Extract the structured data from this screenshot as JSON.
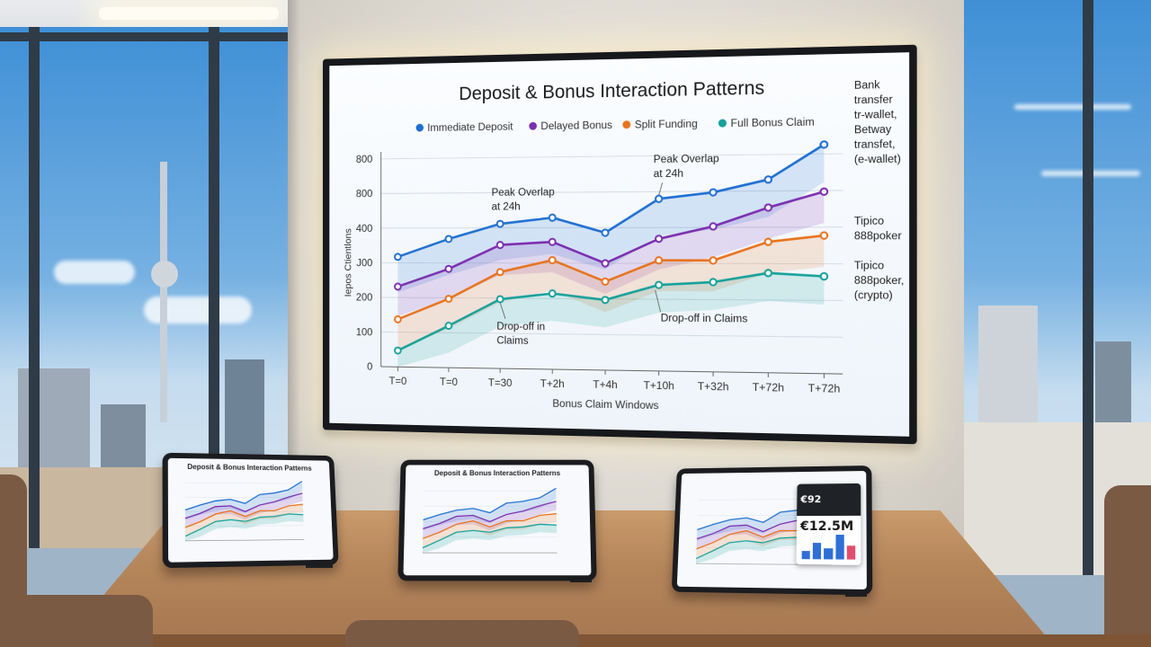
{
  "chart_data": {
    "type": "line",
    "title": "Deposit & Bonus Interaction Patterns",
    "xlabel": "Bonus Claim Windows",
    "ylabel": "Iepos Ctientlons",
    "categories": [
      "T=0",
      "T=0",
      "T=30",
      "T+2h",
      "T+4h",
      "T+10h",
      "T+32h",
      "T+72h",
      "T+72h"
    ],
    "y_ticks": [
      "0",
      "100",
      "200",
      "J00",
      "400",
      "800",
      "800"
    ],
    "ylim": [
      0,
      700
    ],
    "grid": true,
    "legend_position": "top",
    "series": [
      {
        "name": "Immediate Deposit",
        "color": "#1f6fd1",
        "values": [
          370,
          430,
          480,
          500,
          450,
          560,
          580,
          620,
          730
        ],
        "band": 120
      },
      {
        "name": "Delayed Bonus",
        "color": "#7b2fb0",
        "values": [
          270,
          330,
          410,
          420,
          350,
          430,
          470,
          530,
          580
        ],
        "band": 100
      },
      {
        "name": "Split Funding",
        "color": "#e8731d",
        "values": [
          160,
          230,
          320,
          360,
          290,
          360,
          360,
          420,
          440
        ],
        "band": 100
      },
      {
        "name": "Full Bonus Claim",
        "color": "#17a19a",
        "values": [
          55,
          140,
          230,
          250,
          230,
          280,
          290,
          320,
          310
        ],
        "band": 90
      }
    ],
    "annotations": [
      {
        "text": [
          "Peak Overlap",
          "at 24h"
        ],
        "at": 2
      },
      {
        "text": [
          "Peak Overlap",
          "at 24h"
        ],
        "at": 5
      },
      {
        "text": [
          "Drop-off in",
          "Claims"
        ],
        "at": 2
      },
      {
        "text": [
          "Drop-off in Claims"
        ],
        "at": 5
      }
    ],
    "end_labels": [
      {
        "series": 0,
        "lines": [
          "Bank",
          "transfer",
          "tr-wallet,",
          "Betway",
          "transfet,",
          "(e-wallet)"
        ]
      },
      {
        "series": 2,
        "lines": [
          "Tipico",
          "888poker"
        ]
      },
      {
        "series": 3,
        "lines": [
          "Tipico",
          "888poker,",
          "(crypto)"
        ]
      }
    ]
  },
  "tablets": [
    {
      "title": "Deposit & Bonus Interaction Patterns"
    },
    {
      "title": "Deposit & Bonus Interaction Patterns"
    },
    {
      "title": "",
      "popup_kpi": "€92",
      "popup_value": "€12.5M"
    }
  ]
}
